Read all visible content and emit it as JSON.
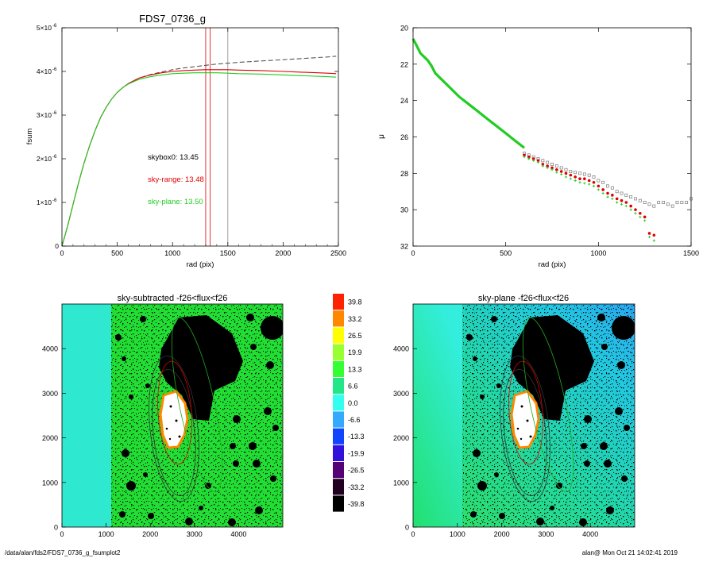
{
  "footer": {
    "left": "/data/alan/fds2/FDS7_0736_g_fsumplot2",
    "right": "alan@  Mon Oct 21 14:02:41 2019"
  },
  "chart_data": [
    {
      "type": "line",
      "title": "FDS7_0736_g",
      "xlabel": "rad (pix)",
      "ylabel": "fsum",
      "xlim": [
        0,
        2500
      ],
      "ylim": [
        0,
        5e-06
      ],
      "xticks": [
        0,
        500,
        1000,
        1500,
        2000,
        2500
      ],
      "yticks": [
        {
          "value": 0,
          "mant": "0",
          "exp": ""
        },
        {
          "value": 1e-06,
          "mant": "1×10",
          "exp": "-6"
        },
        {
          "value": 2e-06,
          "mant": "2×10",
          "exp": "-6"
        },
        {
          "value": 3e-06,
          "mant": "3×10",
          "exp": "-6"
        },
        {
          "value": 4e-06,
          "mant": "4×10",
          "exp": "-6"
        },
        {
          "value": 5e-06,
          "mant": "5×10",
          "exp": "-6"
        }
      ],
      "series": [
        {
          "color": "#555555",
          "dash": true,
          "x": [
            0,
            50,
            100,
            150,
            200,
            250,
            300,
            350,
            400,
            450,
            500,
            550,
            600,
            650,
            700,
            800,
            900,
            1000,
            1100,
            1200,
            1300,
            1400,
            1500,
            1600,
            1800,
            2000,
            2200,
            2400,
            2480
          ],
          "y": [
            0,
            4.5e-07,
            9.5e-07,
            1.45e-06,
            1.9e-06,
            2.3e-06,
            2.65e-06,
            2.95e-06,
            3.18e-06,
            3.37e-06,
            3.52e-06,
            3.63e-06,
            3.72e-06,
            3.79e-06,
            3.85e-06,
            3.93e-06,
            3.99e-06,
            4.04e-06,
            4.08e-06,
            4.11e-06,
            4.14e-06,
            4.17e-06,
            4.19e-06,
            4.21e-06,
            4.24e-06,
            4.27e-06,
            4.3e-06,
            4.33e-06,
            4.35e-06
          ]
        },
        {
          "color": "#dd0000",
          "dash": false,
          "x": [
            0,
            50,
            100,
            150,
            200,
            250,
            300,
            350,
            400,
            450,
            500,
            550,
            600,
            650,
            700,
            800,
            900,
            1000,
            1100,
            1200,
            1300,
            1400,
            1500,
            1600,
            1800,
            2000,
            2200,
            2400,
            2480
          ],
          "y": [
            0,
            4.5e-07,
            9.5e-07,
            1.45e-06,
            1.9e-06,
            2.3e-06,
            2.65e-06,
            2.95e-06,
            3.18e-06,
            3.37e-06,
            3.52e-06,
            3.63e-06,
            3.72e-06,
            3.79e-06,
            3.85e-06,
            3.92e-06,
            3.97e-06,
            4e-06,
            4.02e-06,
            4.03e-06,
            4.04e-06,
            4.04e-06,
            4.04e-06,
            4.03e-06,
            4.02e-06,
            4e-06,
            3.98e-06,
            3.96e-06,
            3.95e-06
          ]
        },
        {
          "color": "#22cc22",
          "dash": false,
          "x": [
            0,
            50,
            100,
            150,
            200,
            250,
            300,
            350,
            400,
            450,
            500,
            550,
            600,
            650,
            700,
            800,
            900,
            1000,
            1100,
            1200,
            1300,
            1400,
            1500,
            1600,
            1800,
            2000,
            2200,
            2400,
            2480
          ],
          "y": [
            0,
            4.5e-07,
            9.5e-07,
            1.45e-06,
            1.9e-06,
            2.3e-06,
            2.65e-06,
            2.95e-06,
            3.18e-06,
            3.37e-06,
            3.52e-06,
            3.63e-06,
            3.71e-06,
            3.77e-06,
            3.82e-06,
            3.88e-06,
            3.92e-06,
            3.95e-06,
            3.96e-06,
            3.97e-06,
            3.97e-06,
            3.97e-06,
            3.96e-06,
            3.95e-06,
            3.94e-06,
            3.92e-06,
            3.9e-06,
            3.88e-06,
            3.87e-06
          ]
        }
      ],
      "vlines": [
        {
          "x": 1300,
          "color": "#dd0000"
        },
        {
          "x": 1340,
          "color": "#dd0000"
        },
        {
          "x": 1500,
          "color": "#888888"
        }
      ],
      "annotations": [
        {
          "text": "skybox0: 13.45",
          "color": "#000000",
          "x": 790,
          "y": 2e-06
        },
        {
          "text": "sky-range: 13.48",
          "color": "#dd0000",
          "x": 790,
          "y": 1.53e-06
        },
        {
          "text": "sky-plane: 13.50",
          "color": "#22cc22",
          "x": 790,
          "y": 1.03e-06
        }
      ]
    },
    {
      "type": "scatter",
      "xlabel": "rad (pix)",
      "ylabel": "μ",
      "xlim": [
        0,
        1500
      ],
      "ylim": [
        32,
        20
      ],
      "yreversed": true,
      "xticks": [
        0,
        500,
        1000,
        1500
      ],
      "yticks": [
        20,
        22,
        24,
        26,
        28,
        30,
        32
      ],
      "series": [
        {
          "marker": "square",
          "color": "#666666",
          "x": [
            600,
            625,
            650,
            675,
            700,
            725,
            750,
            775,
            800,
            825,
            850,
            875,
            900,
            925,
            950,
            975,
            1000,
            1025,
            1050,
            1075,
            1100,
            1125,
            1150,
            1175,
            1200,
            1225,
            1250,
            1275,
            1300,
            1325,
            1350,
            1375,
            1400,
            1425,
            1450,
            1475,
            1500
          ],
          "y": [
            26.9,
            27.0,
            27.1,
            27.2,
            27.3,
            27.4,
            27.5,
            27.6,
            27.7,
            27.8,
            27.9,
            27.95,
            28.0,
            28.05,
            28.1,
            28.2,
            28.4,
            28.5,
            28.7,
            28.8,
            29.0,
            29.1,
            29.2,
            29.3,
            29.4,
            29.5,
            29.6,
            29.7,
            29.8,
            29.6,
            29.6,
            29.7,
            29.8,
            29.6,
            29.6,
            29.6,
            29.4
          ]
        },
        {
          "marker": "circle",
          "color": "#dd0000",
          "x": [
            600,
            625,
            650,
            675,
            700,
            725,
            750,
            775,
            800,
            825,
            850,
            875,
            900,
            925,
            950,
            975,
            1000,
            1025,
            1050,
            1075,
            1100,
            1125,
            1150,
            1175,
            1200,
            1225,
            1250,
            1275,
            1300
          ],
          "y": [
            27.0,
            27.1,
            27.2,
            27.3,
            27.5,
            27.6,
            27.7,
            27.8,
            27.9,
            28.0,
            28.1,
            28.2,
            28.3,
            28.3,
            28.4,
            28.5,
            28.7,
            28.9,
            29.1,
            29.2,
            29.4,
            29.5,
            29.6,
            29.8,
            30.0,
            30.2,
            30.4,
            31.3,
            31.4
          ]
        },
        {
          "marker": "cross",
          "color": "#22cc22",
          "x": [
            600,
            625,
            650,
            675,
            700,
            725,
            750,
            775,
            800,
            825,
            850,
            875,
            900,
            925,
            950,
            975,
            1000,
            1025,
            1050,
            1075,
            1100,
            1125,
            1150,
            1175,
            1200,
            1225,
            1250,
            1275,
            1300
          ],
          "y": [
            27.1,
            27.2,
            27.3,
            27.4,
            27.6,
            27.7,
            27.8,
            27.95,
            28.05,
            28.2,
            28.3,
            28.4,
            28.5,
            28.55,
            28.6,
            28.7,
            28.9,
            29.1,
            29.3,
            29.4,
            29.6,
            29.7,
            29.8,
            30.0,
            30.2,
            30.4,
            30.6,
            31.5,
            31.7
          ]
        }
      ],
      "profile": {
        "color": "#22cc22",
        "x": [
          0,
          10,
          20,
          30,
          40,
          60,
          80,
          100,
          120,
          150,
          200,
          250,
          300,
          350,
          400,
          450,
          500,
          550,
          600
        ],
        "y": [
          20.6,
          20.8,
          21.0,
          21.2,
          21.4,
          21.6,
          21.8,
          22.1,
          22.5,
          22.8,
          23.3,
          23.8,
          24.2,
          24.6,
          25.0,
          25.4,
          25.8,
          26.2,
          26.6
        ]
      }
    },
    {
      "type": "heatmap",
      "title": "sky-subtracted -f26<flux<f26",
      "xlim": [
        0,
        5000
      ],
      "ylim": [
        0,
        5000
      ],
      "xticks": [
        0,
        1000,
        2000,
        3000,
        4000
      ],
      "yticks": [
        0,
        1000,
        2000,
        3000,
        4000
      ],
      "colorbar": [
        "39.8",
        "33.2",
        "26.5",
        "19.9",
        "13.3",
        "6.6",
        "0.0",
        "-6.6",
        "-13.3",
        "-19.9",
        "-26.5",
        "-33.2",
        "-39.8"
      ],
      "colorbar_colors": [
        "#ff2200",
        "#ff8800",
        "#ffff00",
        "#99ff33",
        "#33ff33",
        "#22e688",
        "#33ffee",
        "#33aaff",
        "#1144ff",
        "#3311dd",
        "#550077",
        "#220022",
        "#000000"
      ]
    },
    {
      "type": "heatmap",
      "title": "sky-plane -f26<flux<f26",
      "xlim": [
        0,
        5000
      ],
      "ylim": [
        0,
        5000
      ],
      "xticks": [
        0,
        1000,
        2000,
        3000,
        4000
      ],
      "yticks": [
        0,
        1000,
        2000,
        3000,
        4000
      ]
    }
  ]
}
